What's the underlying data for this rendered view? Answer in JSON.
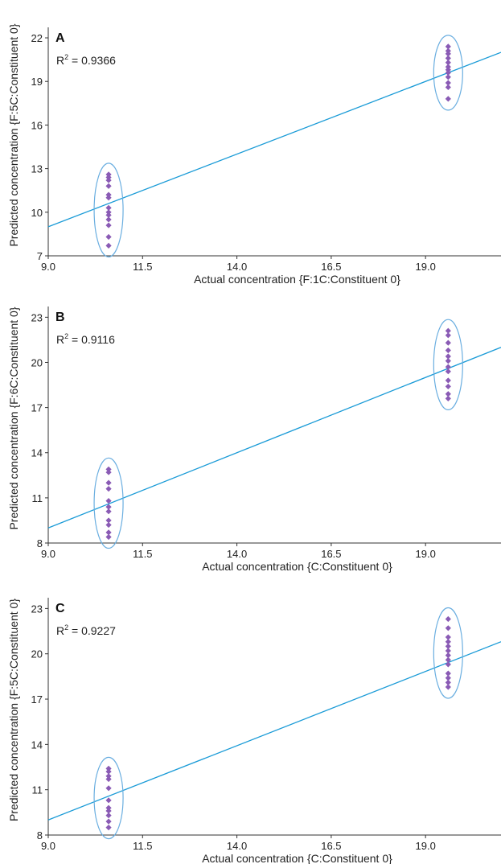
{
  "colors": {
    "points": "#8a5bb5",
    "fit_line": "#1a9bd7",
    "ellipse": "#6aaee0",
    "axis": "#333333"
  },
  "chart_data": [
    {
      "type": "scatter",
      "panel_label": "A",
      "r2_prefix": "R",
      "r2_sup": "2",
      "r2_value": " = 0.9366",
      "xlabel": "Actual concentration {F:1C:Constituent 0}",
      "ylabel": "Predicted concentration {F:5C:Constituent 0}",
      "xlim": [
        9.0,
        21.0
      ],
      "ylim": [
        7,
        22.5
      ],
      "xticks": [
        "9.0",
        "11.5",
        "14.0",
        "16.5",
        "19.0"
      ],
      "yticks": [
        "7",
        "10",
        "13",
        "16",
        "19",
        "22"
      ],
      "fit_line": [
        [
          9.0,
          9.0
        ],
        [
          21.0,
          21.0
        ]
      ],
      "series": [
        {
          "x": 10.6,
          "y": [
            7.7,
            8.3,
            9.1,
            9.5,
            9.8,
            10.0,
            10.3,
            11.0,
            11.2,
            11.8,
            12.2,
            12.4,
            12.6
          ]
        },
        {
          "x": 19.6,
          "y": [
            17.8,
            18.6,
            18.9,
            19.3,
            19.6,
            19.8,
            20.0,
            20.3,
            20.6,
            20.9,
            21.1,
            21.4
          ]
        }
      ]
    },
    {
      "type": "scatter",
      "panel_label": "B",
      "r2_prefix": "R",
      "r2_sup": "2",
      "r2_value": " = 0.9116",
      "xlabel": "Actual concentration {C:Constituent 0}",
      "ylabel": "Predicted concentration {F:6C:Constituent 0}",
      "xlim": [
        9.0,
        21.0
      ],
      "ylim": [
        8,
        23.5
      ],
      "xticks": [
        "9.0",
        "11.5",
        "14.0",
        "16.5",
        "19.0"
      ],
      "yticks": [
        "8",
        "11",
        "14",
        "17",
        "20",
        "23"
      ],
      "fit_line": [
        [
          9.0,
          9.0
        ],
        [
          21.0,
          21.0
        ]
      ],
      "series": [
        {
          "x": 10.6,
          "y": [
            8.4,
            8.7,
            9.2,
            9.5,
            10.1,
            10.4,
            10.8,
            11.6,
            12.0,
            12.7,
            12.9
          ]
        },
        {
          "x": 19.6,
          "y": [
            17.6,
            17.9,
            18.4,
            18.8,
            19.4,
            19.7,
            20.1,
            20.4,
            20.8,
            21.3,
            21.8,
            22.1
          ]
        }
      ]
    },
    {
      "type": "scatter",
      "panel_label": "C",
      "r2_prefix": "R",
      "r2_sup": "2",
      "r2_value": " = 0.9227",
      "xlabel": "Actual concentration {C:Constituent 0}",
      "ylabel": "Predicted concentration {F:5C:Constituent 0}",
      "xlim": [
        9.0,
        21.0
      ],
      "ylim": [
        8,
        23.5
      ],
      "xticks": [
        "9.0",
        "11.5",
        "14.0",
        "16.5",
        "19.0"
      ],
      "yticks": [
        "8",
        "11",
        "14",
        "17",
        "20",
        "23"
      ],
      "fit_line": [
        [
          9.0,
          9.0
        ],
        [
          21.0,
          20.8
        ]
      ],
      "series": [
        {
          "x": 10.6,
          "y": [
            8.5,
            8.9,
            9.3,
            9.6,
            9.8,
            10.3,
            11.1,
            11.7,
            11.9,
            12.2,
            12.4
          ]
        },
        {
          "x": 19.6,
          "y": [
            17.8,
            18.1,
            18.4,
            18.7,
            19.3,
            19.6,
            19.9,
            20.2,
            20.5,
            20.8,
            21.1,
            21.7,
            22.3
          ]
        }
      ]
    }
  ]
}
